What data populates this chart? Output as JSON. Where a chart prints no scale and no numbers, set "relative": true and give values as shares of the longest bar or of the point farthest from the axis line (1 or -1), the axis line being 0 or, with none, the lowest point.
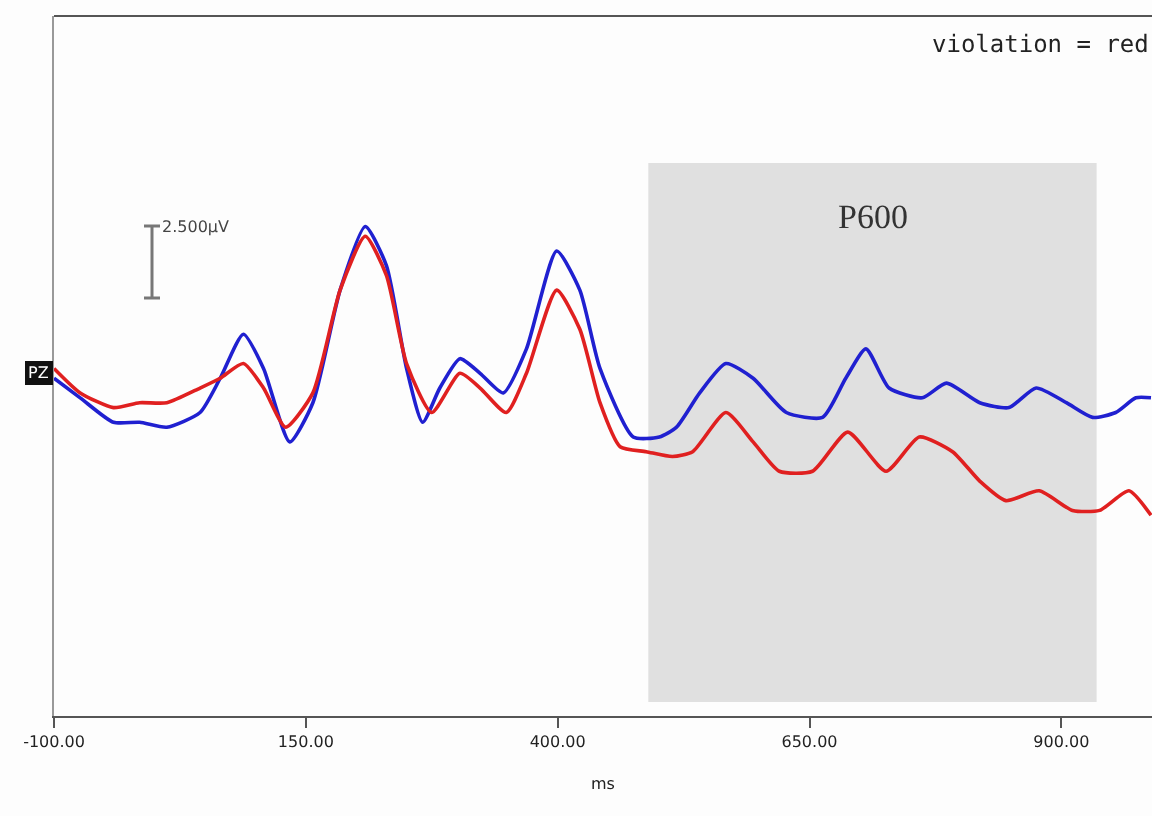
{
  "chart_data": {
    "type": "line",
    "relative": true,
    "xlabel": "ms",
    "xlim": [
      -100,
      990
    ],
    "xticks": [
      {
        "value": -100,
        "label": "-100.00"
      },
      {
        "value": 150,
        "label": "150.00"
      },
      {
        "value": 400,
        "label": "400.00"
      },
      {
        "value": 650,
        "label": "650.00"
      },
      {
        "value": 900,
        "label": "900.00"
      }
    ],
    "tick_labels": "x",
    "grid": false,
    "marker": "none",
    "line_style": "solid",
    "annotations": [
      "violation = red",
      "2.500µV",
      "PZ"
    ],
    "bands": [
      {
        "axis": "x",
        "from": 490,
        "to": 935,
        "label": "P600",
        "color": "#e0e0e0"
      }
    ],
    "series": [
      {
        "color": "#2020d0",
        "x": [
          -100,
          -74,
          -41,
          -15,
          12,
          45,
          65,
          88,
          108,
          134,
          157,
          184,
          209,
          230,
          250,
          266,
          283,
          303,
          323,
          346,
          369,
          399,
          422,
          442,
          475,
          501,
          518,
          541,
          567,
          594,
          627,
          663,
          686,
          706,
          729,
          762,
          786,
          819,
          848,
          875,
          905,
          931,
          954,
          974,
          989
        ],
        "values": [
          0.69,
          0.65,
          0.6,
          0.6,
          0.59,
          0.62,
          0.69,
          0.78,
          0.71,
          0.56,
          0.64,
          0.87,
          1,
          0.92,
          0.71,
          0.6,
          0.67,
          0.73,
          0.7,
          0.66,
          0.75,
          0.95,
          0.87,
          0.71,
          0.57,
          0.57,
          0.59,
          0.66,
          0.72,
          0.69,
          0.62,
          0.61,
          0.69,
          0.75,
          0.67,
          0.65,
          0.68,
          0.64,
          0.63,
          0.67,
          0.64,
          0.61,
          0.62,
          0.65,
          0.65
        ]
      },
      {
        "color": "#e02020",
        "x": [
          -100,
          -74,
          -41,
          -15,
          12,
          45,
          65,
          88,
          108,
          130,
          157,
          184,
          209,
          230,
          250,
          275,
          303,
          323,
          349,
          369,
          399,
          422,
          442,
          462,
          488,
          514,
          534,
          567,
          594,
          620,
          653,
          688,
          726,
          759,
          792,
          819,
          845,
          878,
          911,
          938,
          967,
          989
        ],
        "values": [
          0.71,
          0.66,
          0.63,
          0.64,
          0.64,
          0.67,
          0.69,
          0.72,
          0.67,
          0.59,
          0.66,
          0.87,
          0.98,
          0.9,
          0.72,
          0.62,
          0.7,
          0.67,
          0.62,
          0.7,
          0.87,
          0.79,
          0.64,
          0.55,
          0.54,
          0.53,
          0.54,
          0.62,
          0.56,
          0.5,
          0.5,
          0.58,
          0.5,
          0.57,
          0.54,
          0.48,
          0.44,
          0.46,
          0.42,
          0.42,
          0.46,
          0.41
        ]
      }
    ]
  }
}
